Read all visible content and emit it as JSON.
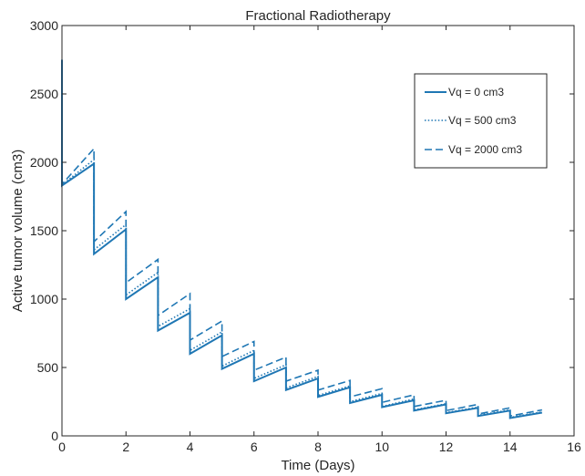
{
  "chart_data": {
    "type": "line",
    "title": "Fractional Radiotherapy",
    "xlabel": "Time (Days)",
    "ylabel": "Active tumor volume (cm3)",
    "xlim": [
      0,
      16
    ],
    "ylim": [
      0,
      3000
    ],
    "xticks": [
      0,
      2,
      4,
      6,
      8,
      10,
      12,
      14,
      16
    ],
    "yticks": [
      0,
      500,
      1000,
      1500,
      2000,
      2500,
      3000
    ],
    "grid": false,
    "legend_position": "top-right",
    "line_color": "#1f77b4",
    "initial_value": 2750,
    "series": [
      {
        "name": "Vq = 0 cm3",
        "style": "solid",
        "post_dose": [
          1830,
          1330,
          1000,
          770,
          600,
          490,
          400,
          335,
          285,
          240,
          210,
          185,
          165,
          145,
          130
        ],
        "pre_dose": [
          1990,
          1510,
          1160,
          900,
          735,
          600,
          500,
          420,
          355,
          300,
          260,
          230,
          205,
          185,
          170
        ]
      },
      {
        "name": "Vq = 500 cm3",
        "style": "dotted",
        "post_dose": [
          1835,
          1360,
          1030,
          800,
          625,
          510,
          420,
          350,
          295,
          250,
          215,
          190,
          170,
          150,
          135
        ],
        "pre_dose": [
          2020,
          1545,
          1195,
          930,
          760,
          625,
          520,
          435,
          365,
          310,
          270,
          235,
          210,
          190,
          175
        ]
      },
      {
        "name": "Vq = 2000 cm3",
        "style": "dashed",
        "post_dose": [
          1840,
          1420,
          1120,
          880,
          700,
          580,
          480,
          400,
          335,
          285,
          245,
          215,
          185,
          160,
          145
        ],
        "pre_dose": [
          2100,
          1640,
          1290,
          1040,
          840,
          690,
          575,
          480,
          405,
          345,
          300,
          260,
          230,
          205,
          190
        ]
      }
    ]
  }
}
